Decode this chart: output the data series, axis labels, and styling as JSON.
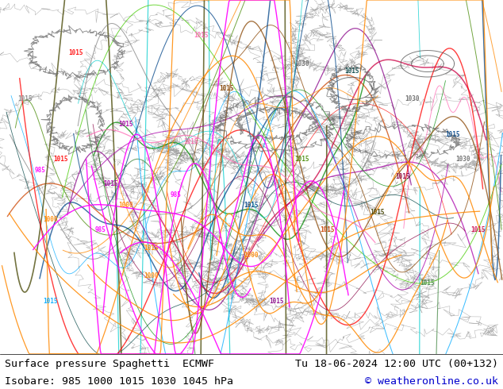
{
  "title_left": "Surface pressure Spaghetti  ECMWF",
  "title_right": "Tu 18-06-2024 12:00 UTC (00+132)",
  "subtitle": "Isobare: 985 1000 1015 1030 1045 hPa",
  "copyright": "© weatheronline.co.uk",
  "bg_color": "#ccff99",
  "bottom_bar_color": "#ffffff",
  "text_color": "#000000",
  "title_fontsize": 9.5,
  "subtitle_fontsize": 9.5,
  "fig_width": 6.34,
  "fig_height": 4.9,
  "dpi": 100,
  "isobar_colors": {
    "985": "#ff00ff",
    "1000": "#ff8800",
    "1015": [
      "#808080",
      "#00aaff",
      "#ff0000",
      "#00aa00",
      "#aa00ff",
      "#ffff00",
      "#00ffff",
      "#ff69b4"
    ],
    "1030": "#888888",
    "1045": "#888888"
  },
  "map_bg": "#ccff99"
}
